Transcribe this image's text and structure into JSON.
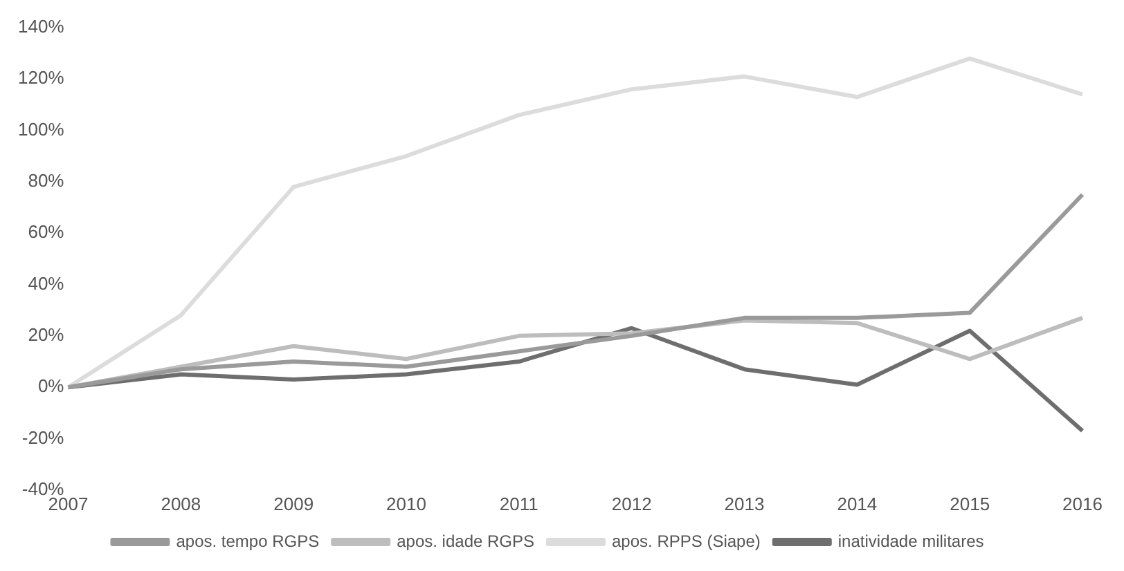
{
  "chart_data": {
    "type": "line",
    "categories": [
      "2007",
      "2008",
      "2009",
      "2010",
      "2011",
      "2012",
      "2013",
      "2014",
      "2015",
      "2016"
    ],
    "series": [
      {
        "name": "apos. tempo RGPS",
        "color": "#9a9a9a",
        "values": [
          0,
          7,
          10,
          8,
          14,
          20,
          27,
          27,
          29,
          75
        ]
      },
      {
        "name": "apos. idade RGPS",
        "color": "#bdbdbd",
        "values": [
          0,
          8,
          16,
          11,
          20,
          21,
          26,
          25,
          11,
          27
        ]
      },
      {
        "name": "apos. RPPS (Siape)",
        "color": "#dcdcdc",
        "values": [
          0,
          28,
          78,
          90,
          106,
          116,
          121,
          113,
          128,
          114
        ]
      },
      {
        "name": "inatividade militares",
        "color": "#6e6e6e",
        "values": [
          0,
          5,
          3,
          5,
          10,
          23,
          7,
          1,
          22,
          -17
        ]
      }
    ],
    "ylim": [
      -40,
      140
    ],
    "yticks": [
      {
        "value": -40,
        "label": "-40%"
      },
      {
        "value": -20,
        "label": "-20%"
      },
      {
        "value": 0,
        "label": "0%"
      },
      {
        "value": 20,
        "label": "20%"
      },
      {
        "value": 40,
        "label": "40%"
      },
      {
        "value": 60,
        "label": "60%"
      },
      {
        "value": 80,
        "label": "80%"
      },
      {
        "value": 100,
        "label": "100%"
      },
      {
        "value": 120,
        "label": "120%"
      },
      {
        "value": 140,
        "label": "140%"
      }
    ],
    "grid": false,
    "legend": "bottom",
    "marker": "none",
    "line_style": "solid"
  }
}
